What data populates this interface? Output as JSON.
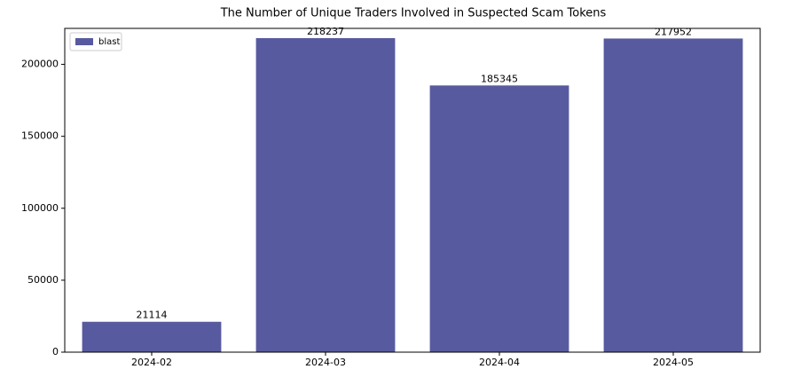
{
  "chart_data": {
    "type": "bar",
    "title": "The Number of Unique Traders Involved in Suspected Scam Tokens",
    "categories": [
      "2024-02",
      "2024-03",
      "2024-04",
      "2024-05"
    ],
    "series": [
      {
        "name": "blast",
        "color": "#575a9e",
        "values": [
          21114,
          218237,
          185345,
          217952
        ]
      }
    ],
    "ylim": [
      0,
      225000
    ],
    "yticks": [
      0,
      50000,
      100000,
      150000,
      200000
    ],
    "legend": "upper left"
  }
}
